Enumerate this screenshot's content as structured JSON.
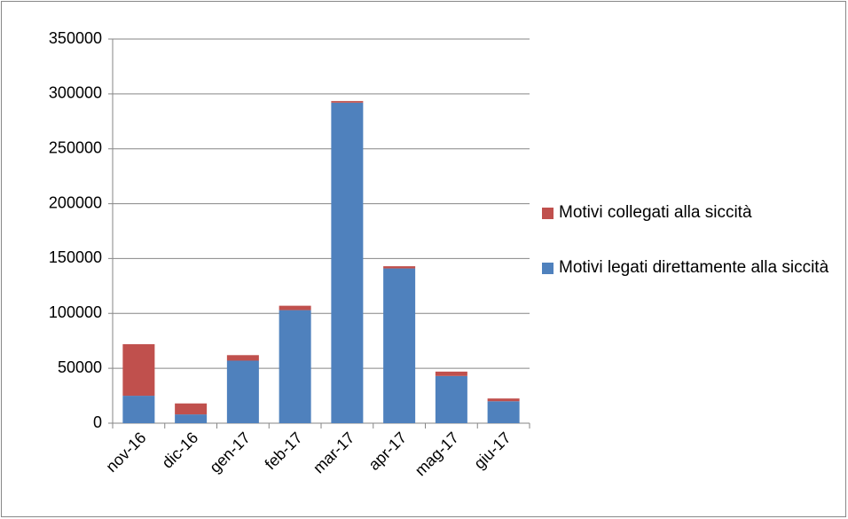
{
  "chart_data": {
    "type": "bar",
    "stacked": true,
    "categories": [
      "nov-16",
      "dic-16",
      "gen-17",
      "feb-17",
      "mar-17",
      "apr-17",
      "mag-17",
      "giu-17"
    ],
    "series": [
      {
        "name": "Motivi legati direttamente alla siccità",
        "color": "#4f81bd",
        "values": [
          25000,
          8000,
          57000,
          103000,
          292000,
          141000,
          43000,
          20000
        ]
      },
      {
        "name": "Motivi collegati alla siccità",
        "color": "#c0504d",
        "values": [
          47000,
          10000,
          5000,
          4000,
          1500,
          2000,
          4000,
          2500
        ]
      }
    ],
    "ylim": [
      0,
      350000
    ],
    "yticks": [
      0,
      50000,
      100000,
      150000,
      200000,
      250000,
      300000,
      350000
    ],
    "grid": true,
    "legend": "right"
  }
}
